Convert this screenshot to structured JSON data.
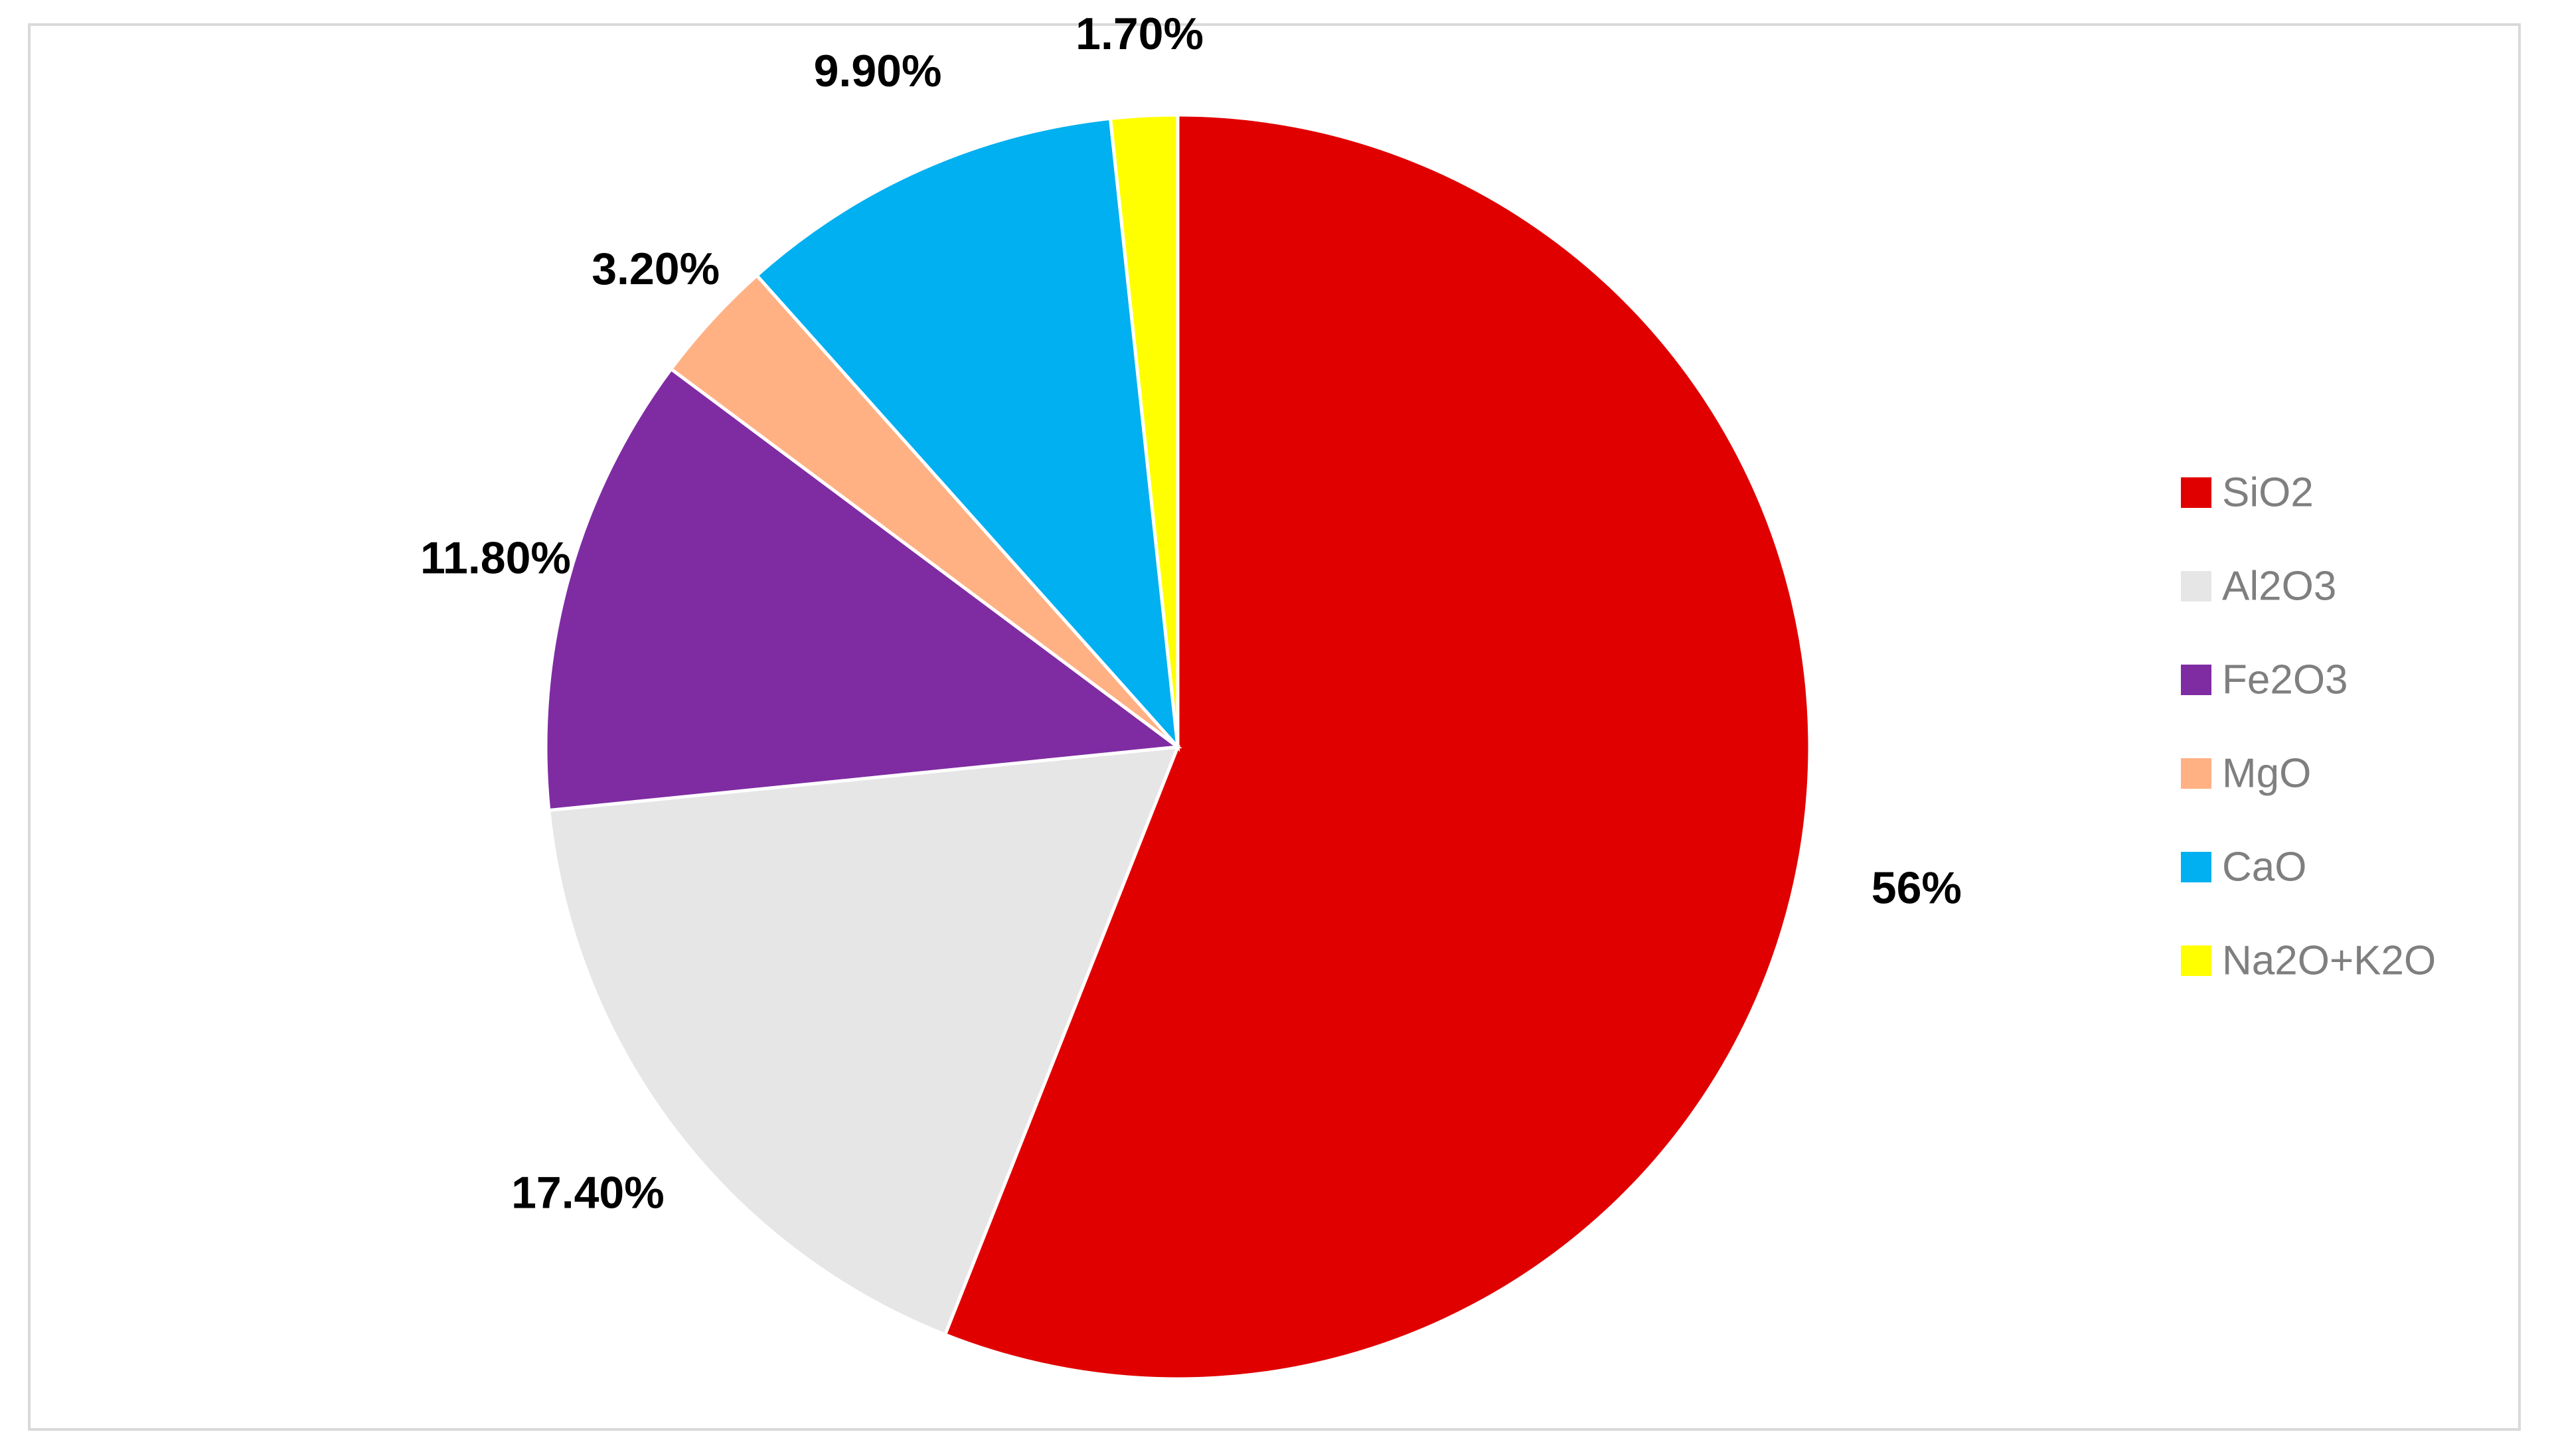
{
  "chart_data": {
    "type": "pie",
    "start_angle_deg": 0,
    "direction": "clockwise",
    "legend_position": "right",
    "slices": [
      {
        "name": "SiO2",
        "value": 56,
        "label": "56%",
        "color": "#e00000"
      },
      {
        "name": "Al2O3",
        "value": 17.4,
        "label": "17.40%",
        "color": "#e6e6e6"
      },
      {
        "name": "Fe2O3",
        "value": 11.8,
        "label": "11.80%",
        "color": "#7f2ca3"
      },
      {
        "name": "MgO",
        "value": 3.2,
        "label": "3.20%",
        "color": "#ffb184"
      },
      {
        "name": "CaO",
        "value": 9.9,
        "label": "9.90%",
        "color": "#00b0f0"
      },
      {
        "name": "Na2O+K2O",
        "value": 1.7,
        "label": "1.70%",
        "color": "#ffff00"
      }
    ]
  }
}
